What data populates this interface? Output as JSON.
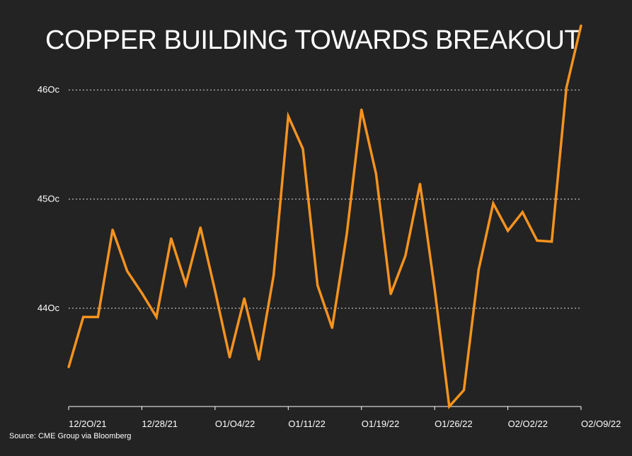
{
  "chart_data": {
    "type": "line",
    "title": "COPPER BUILDING TOWARDS BREAKOUT",
    "source": "Source: CME Group via Bloomberg",
    "xlabel": "",
    "ylabel": "",
    "x_ticks": [
      "12/2O/21",
      "12/28/21",
      "O1/O4/22",
      "O1/11/22",
      "O1/19/22",
      "O1/26/22",
      "O2/O2/22",
      "O2/O9/22"
    ],
    "y_ticks": [
      {
        "value": 440,
        "label": "44Oc"
      },
      {
        "value": 450,
        "label": "45Oc"
      },
      {
        "value": 460,
        "label": "46Oc"
      }
    ],
    "ylim": [
      431,
      465
    ],
    "grid": "horizontal dotted",
    "colors": {
      "background": "#232323",
      "line": "#f7931e",
      "grid": "#e0e0e0",
      "text": "#ffffff"
    },
    "series": [
      {
        "name": "Copper",
        "values": [
          434.6,
          439.2,
          439.2,
          447.2,
          443.4,
          441.4,
          439.2,
          446.4,
          442.2,
          447.4,
          441.6,
          435.5,
          440.9,
          435.3,
          443.0,
          457.6,
          454.6,
          442.1,
          438.2,
          446.8,
          458.2,
          452.3,
          441.3,
          444.8,
          451.4,
          441.8,
          431.0,
          432.5,
          443.5,
          449.6,
          447.1,
          448.8,
          446.2,
          446.1,
          460.2,
          465.9
        ]
      }
    ]
  }
}
